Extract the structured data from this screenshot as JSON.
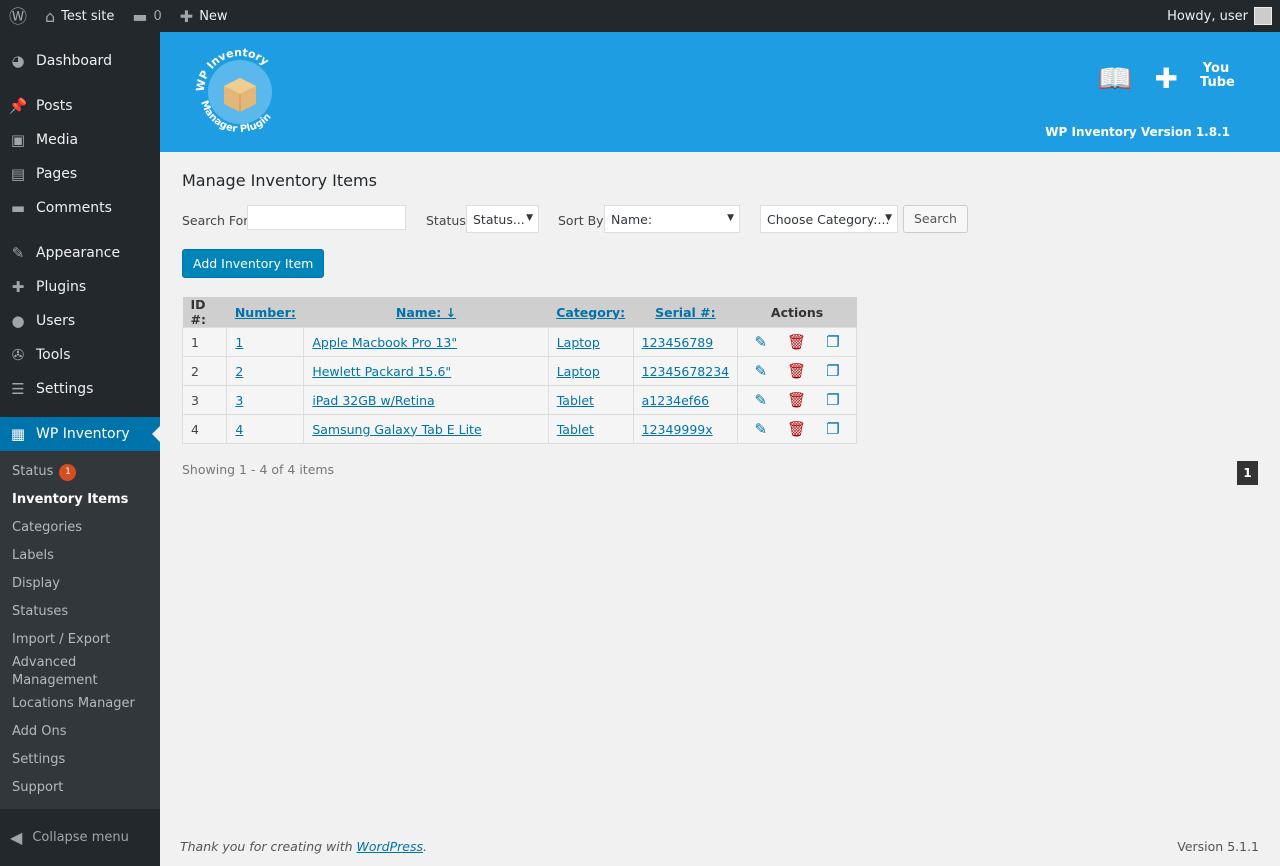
{
  "adminbar": {
    "site": "Test site",
    "comments": "0",
    "new": "New",
    "howdy": "Howdy, user"
  },
  "sidebar": {
    "items": [
      {
        "label": "Dashboard",
        "icon": "◕"
      },
      {
        "label": "Posts",
        "icon": "📌"
      },
      {
        "label": "Media",
        "icon": "▣"
      },
      {
        "label": "Pages",
        "icon": "▤"
      },
      {
        "label": "Comments",
        "icon": "▬"
      },
      {
        "label": "Appearance",
        "icon": "✎"
      },
      {
        "label": "Plugins",
        "icon": "✚"
      },
      {
        "label": "Users",
        "icon": "●"
      },
      {
        "label": "Tools",
        "icon": "✇"
      },
      {
        "label": "Settings",
        "icon": "☰"
      }
    ],
    "active": "WP Inventory",
    "sub": [
      "Status",
      "Inventory Items",
      "Categories",
      "Labels",
      "Display",
      "Statuses",
      "Import / Export",
      "Advanced Management",
      "Locations Manager",
      "Add Ons",
      "Settings",
      "Support"
    ],
    "status_badge": "1",
    "collapse": "Collapse menu"
  },
  "banner": {
    "logo_text": "WP Inventory Manager Plugin",
    "version": "WP Inventory Version 1.8.1",
    "youtube": "You Tube"
  },
  "main": {
    "title": "Manage Inventory Items",
    "search_label": "Search For",
    "search_value": "",
    "status_label": "Status",
    "status_value": "Status...",
    "sort_label": "Sort By",
    "sort_value": "Name:",
    "category_value": "Choose Category:...",
    "search_button": "Search",
    "add_button": "Add Inventory Item",
    "columns": [
      "ID #:",
      "Number:",
      "Name: ↓",
      "Category:",
      "Serial #:",
      "Actions"
    ],
    "rows": [
      [
        "1",
        "1",
        "Apple Macbook Pro 13\"",
        "Laptop",
        "123456789"
      ],
      [
        "2",
        "2",
        "Hewlett Packard 15.6\"",
        "Laptop",
        "12345678234"
      ],
      [
        "3",
        "3",
        "iPad 32GB w/Retina",
        "Tablet",
        "a1234ef66"
      ],
      [
        "4",
        "4",
        "Samsung Galaxy Tab E Lite",
        "Tablet",
        "12349999x"
      ]
    ],
    "showing": "Showing 1 - 4 of 4 items",
    "page": "1"
  },
  "footer": {
    "thanks": "Thank you for creating with ",
    "wp": "WordPress",
    "version": "Version 5.1.1"
  }
}
